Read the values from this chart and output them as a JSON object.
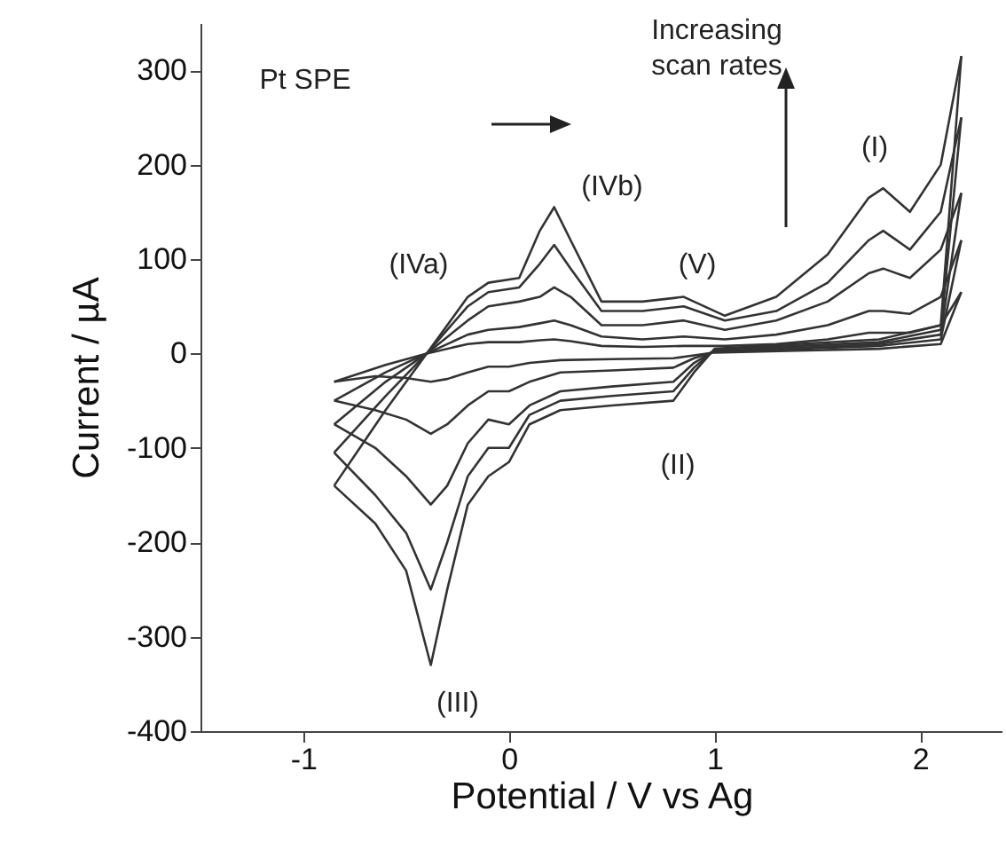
{
  "chart_data": {
    "type": "line",
    "xlabel": "Potential / V vs Ag",
    "ylabel": "Current / µA",
    "xlim": [
      -1.5,
      2.4
    ],
    "ylim": [
      -400,
      350
    ],
    "xticks": [
      -1,
      0,
      1,
      2
    ],
    "yticks": [
      -400,
      -300,
      -200,
      -100,
      0,
      100,
      200,
      300
    ],
    "grid": false,
    "marker": "none",
    "line_style": "solid",
    "annotations": [
      "Pt SPE",
      "Increasing scan rates",
      "(I)",
      "(II)",
      "(III)",
      "(IVa)",
      "(IVb)",
      "(V)"
    ],
    "series": [
      {
        "color": "#333333",
        "x": [
          -0.85,
          -0.65,
          -0.5,
          -0.38,
          -0.3,
          -0.2,
          -0.1,
          0.0,
          0.1,
          0.25,
          0.5,
          0.8,
          0.9,
          1.0,
          1.4,
          1.8,
          2.1,
          2.2
        ],
        "values": [
          -140,
          -180,
          -230,
          -330,
          -250,
          -160,
          -130,
          -115,
          -75,
          -60,
          -55,
          -50,
          -20,
          5,
          10,
          15,
          30,
          315
        ]
      },
      {
        "color": "#333333",
        "x": [
          -0.85,
          -0.65,
          -0.5,
          -0.38,
          -0.3,
          -0.2,
          -0.1,
          0.0,
          0.1,
          0.25,
          0.5,
          0.8,
          0.9,
          1.0,
          1.4,
          1.8,
          2.1,
          2.2
        ],
        "values": [
          -105,
          -150,
          -190,
          -250,
          -200,
          -130,
          -100,
          -100,
          -65,
          -50,
          -45,
          -40,
          -15,
          4,
          8,
          12,
          25,
          250
        ]
      },
      {
        "color": "#333333",
        "x": [
          -0.85,
          -0.65,
          -0.5,
          -0.38,
          -0.3,
          -0.2,
          -0.1,
          0.0,
          0.1,
          0.25,
          0.5,
          0.8,
          0.9,
          1.0,
          1.4,
          1.8,
          2.1,
          2.2
        ],
        "values": [
          -75,
          -100,
          -130,
          -160,
          -140,
          -95,
          -70,
          -75,
          -55,
          -40,
          -35,
          -30,
          -10,
          3,
          6,
          10,
          20,
          170
        ]
      },
      {
        "color": "#333333",
        "x": [
          -0.85,
          -0.65,
          -0.5,
          -0.38,
          -0.3,
          -0.2,
          -0.1,
          0.0,
          0.1,
          0.25,
          0.5,
          0.8,
          0.9,
          1.0,
          1.4,
          1.8,
          2.1,
          2.2
        ],
        "values": [
          -50,
          -60,
          -70,
          -85,
          -75,
          -55,
          -40,
          -40,
          -30,
          -20,
          -18,
          -15,
          -5,
          2,
          5,
          8,
          15,
          120
        ]
      },
      {
        "color": "#333333",
        "x": [
          -0.85,
          -0.65,
          -0.5,
          -0.38,
          -0.3,
          -0.2,
          -0.1,
          0.0,
          0.1,
          0.25,
          0.5,
          0.8,
          0.9,
          1.0,
          1.4,
          1.8,
          2.1,
          2.2
        ],
        "values": [
          -30,
          -24,
          -26,
          -30,
          -27,
          -20,
          -14,
          -14,
          -10,
          -7,
          -6,
          -5,
          -2,
          1,
          3,
          5,
          10,
          65
        ]
      },
      {
        "color": "#333333",
        "x": [
          -0.85,
          -0.6,
          -0.4,
          -0.2,
          -0.1,
          0.05,
          0.15,
          0.22,
          0.3,
          0.45,
          0.65,
          0.85,
          1.05,
          1.3,
          1.55,
          1.75,
          1.82,
          1.95,
          2.1,
          2.2
        ],
        "values": [
          -140,
          -60,
          0,
          60,
          75,
          80,
          130,
          155,
          120,
          55,
          55,
          60,
          40,
          60,
          105,
          165,
          175,
          150,
          200,
          315
        ]
      },
      {
        "color": "#333333",
        "x": [
          -0.85,
          -0.6,
          -0.4,
          -0.2,
          -0.1,
          0.05,
          0.15,
          0.22,
          0.3,
          0.45,
          0.65,
          0.85,
          1.05,
          1.3,
          1.55,
          1.75,
          1.82,
          1.95,
          2.1,
          2.2
        ],
        "values": [
          -105,
          -45,
          0,
          50,
          65,
          70,
          95,
          115,
          90,
          45,
          45,
          50,
          35,
          45,
          75,
          120,
          130,
          110,
          150,
          250
        ]
      },
      {
        "color": "#333333",
        "x": [
          -0.85,
          -0.6,
          -0.4,
          -0.2,
          -0.1,
          0.05,
          0.15,
          0.22,
          0.3,
          0.45,
          0.65,
          0.85,
          1.05,
          1.3,
          1.55,
          1.75,
          1.82,
          1.95,
          2.1,
          2.2
        ],
        "values": [
          -75,
          -30,
          0,
          35,
          50,
          55,
          60,
          70,
          60,
          30,
          30,
          35,
          25,
          35,
          55,
          85,
          90,
          80,
          110,
          170
        ]
      },
      {
        "color": "#333333",
        "x": [
          -0.85,
          -0.6,
          -0.4,
          -0.2,
          -0.1,
          0.05,
          0.15,
          0.22,
          0.3,
          0.45,
          0.65,
          0.85,
          1.05,
          1.3,
          1.55,
          1.75,
          1.82,
          1.95,
          2.1,
          2.2
        ],
        "values": [
          -50,
          -20,
          0,
          20,
          25,
          28,
          32,
          35,
          30,
          18,
          15,
          18,
          15,
          20,
          30,
          45,
          45,
          42,
          60,
          120
        ]
      },
      {
        "color": "#333333",
        "x": [
          -0.85,
          -0.6,
          -0.4,
          -0.2,
          -0.1,
          0.05,
          0.15,
          0.22,
          0.3,
          0.45,
          0.65,
          0.85,
          1.05,
          1.3,
          1.55,
          1.75,
          1.82,
          1.95,
          2.1,
          2.2
        ],
        "values": [
          -30,
          -12,
          0,
          10,
          12,
          12,
          14,
          15,
          13,
          8,
          7,
          8,
          8,
          10,
          15,
          22,
          22,
          22,
          30,
          65
        ]
      }
    ]
  }
}
